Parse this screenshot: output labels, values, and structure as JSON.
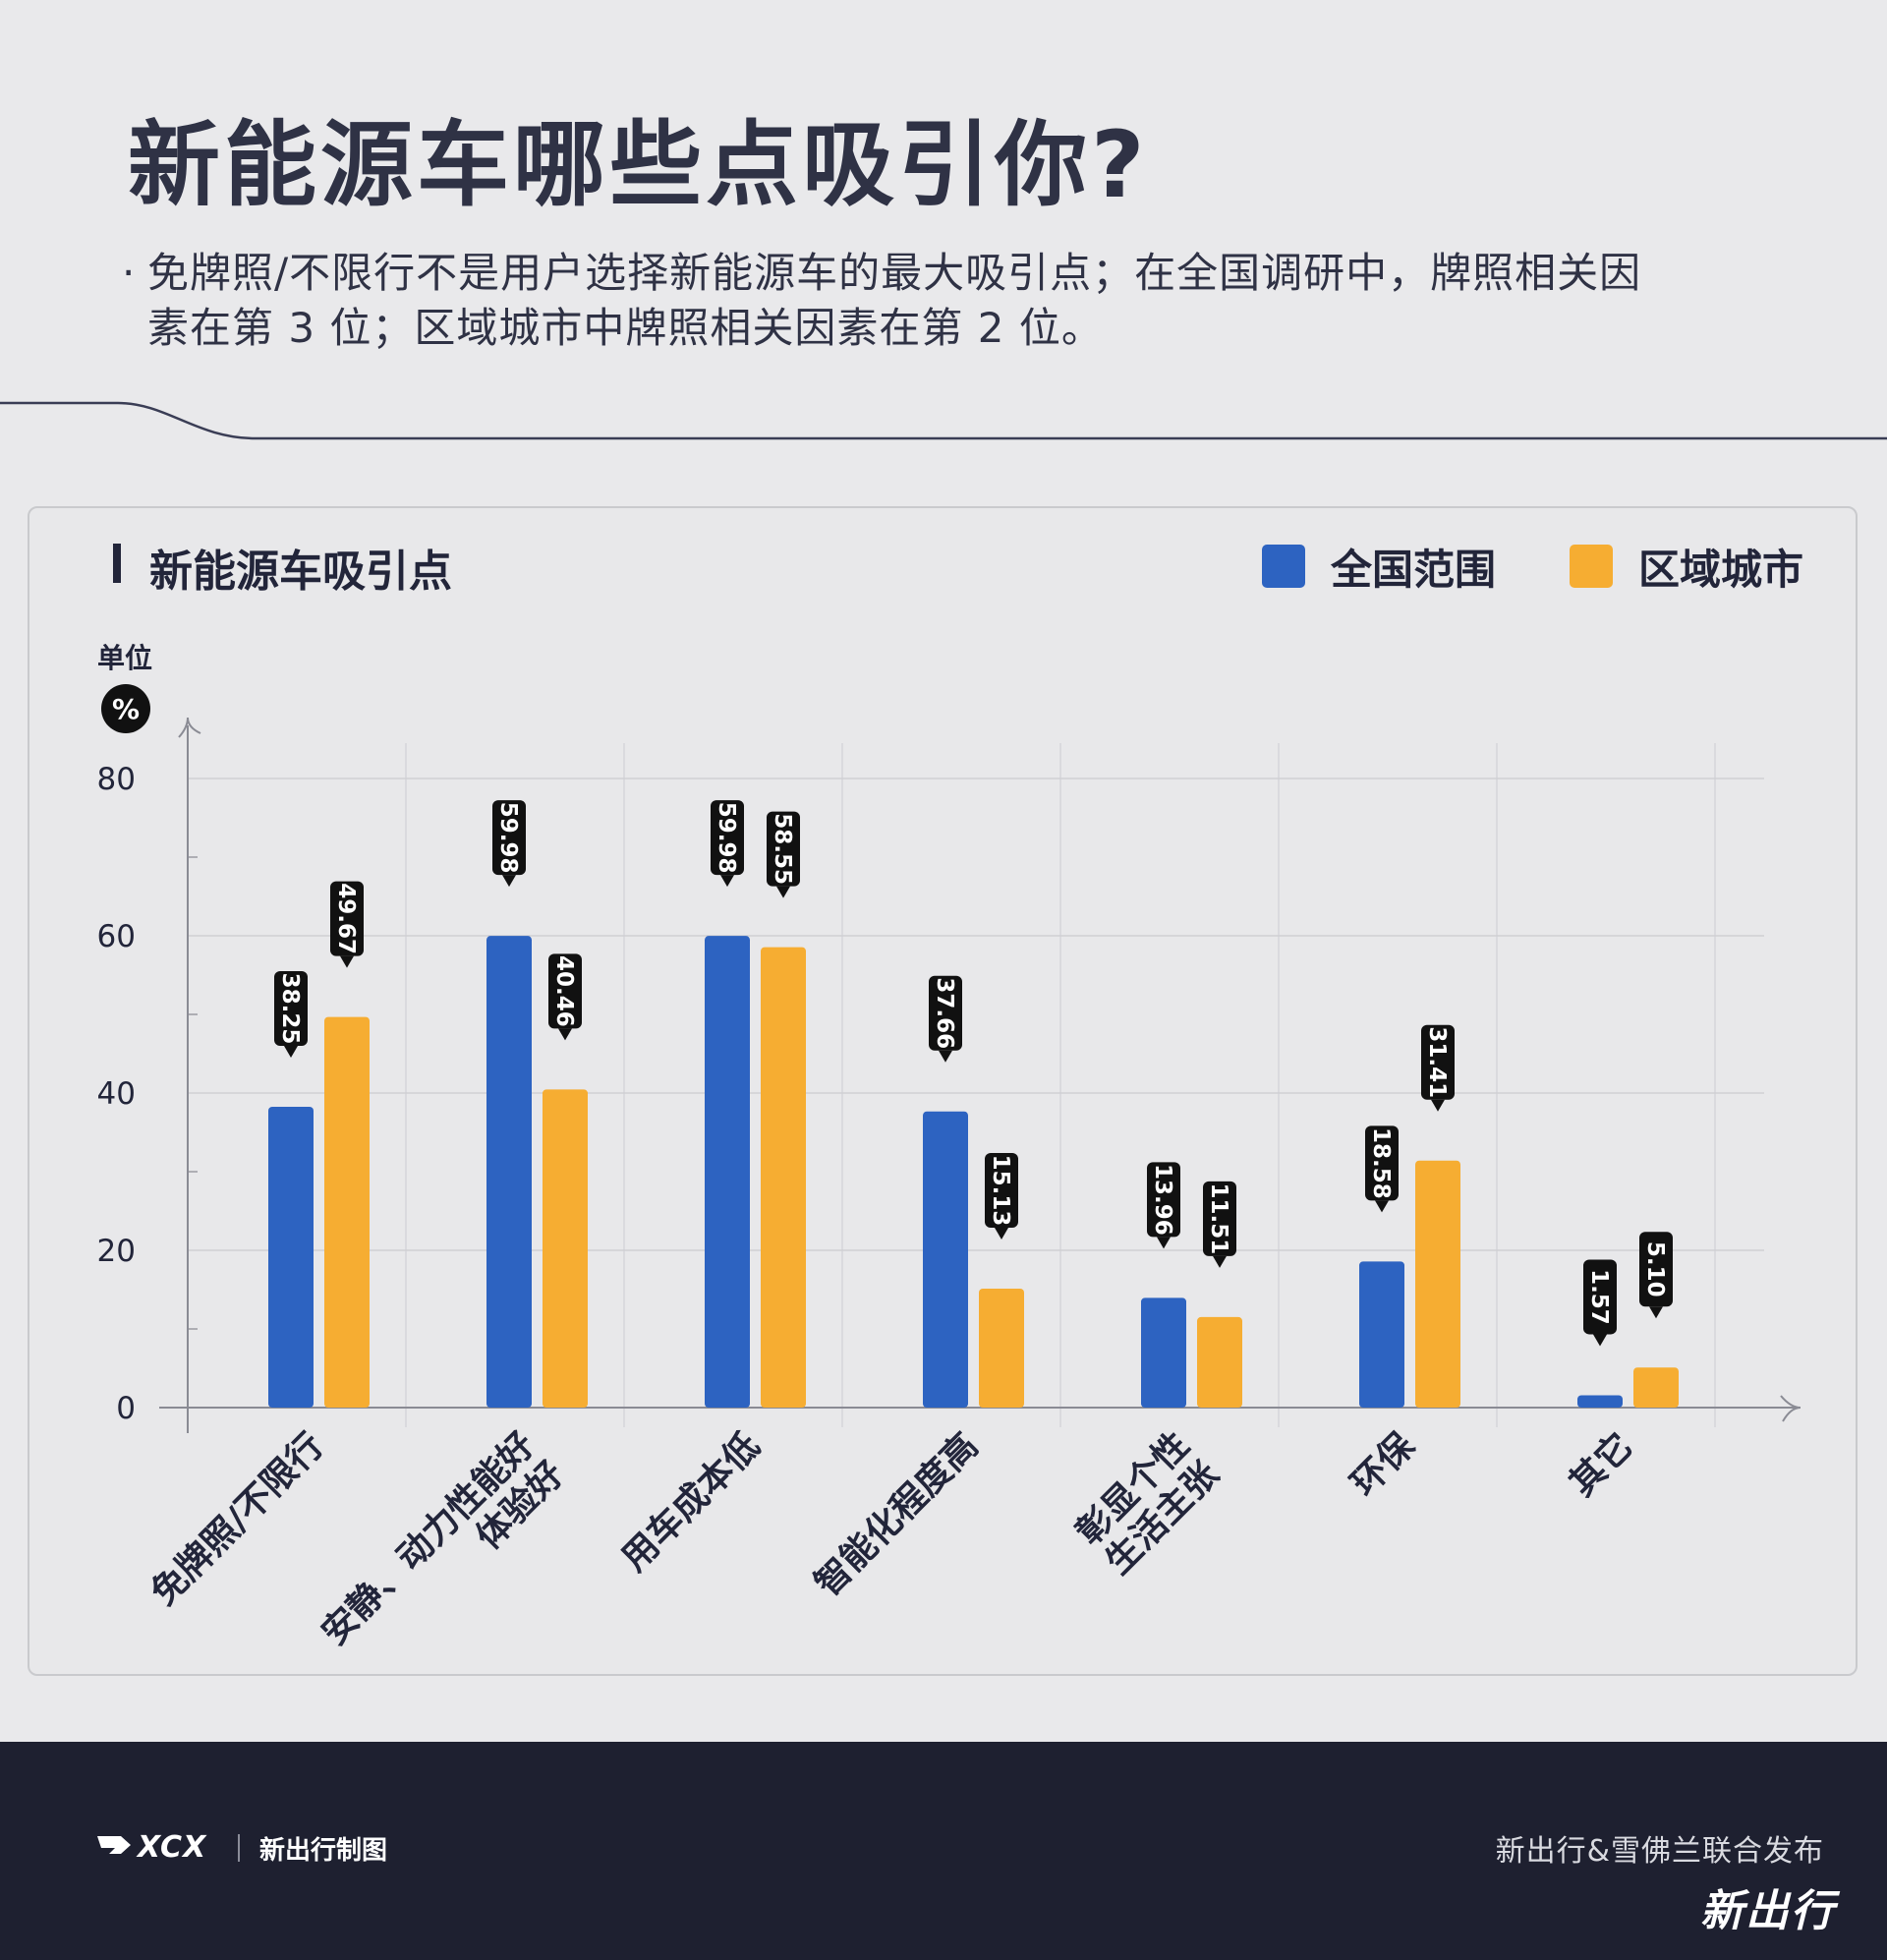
{
  "header": {
    "title": "新能源车哪些点吸引你?",
    "bullet_line1": "免牌照/不限行不是用户选择新能源车的最大吸引点；在全国调研中，牌照相关因",
    "bullet_line2": "素在第 3 位；区域城市中牌照相关因素在第 2 位。"
  },
  "card": {
    "title": "新能源车吸引点",
    "unit_label": "单位",
    "unit_symbol": "%"
  },
  "legend": [
    {
      "name": "全国范围",
      "color": "#2d63c1"
    },
    {
      "name": "区域城市",
      "color": "#f6ad32"
    }
  ],
  "chart_data": {
    "type": "bar",
    "title": "新能源车吸引点",
    "ylabel": "单位 %",
    "ylim": [
      0,
      80
    ],
    "yticks": [
      0,
      20,
      40,
      60,
      80
    ],
    "grid": true,
    "legend_position": "top-right",
    "categories": [
      "免牌照/不限行",
      "安静、动力性能好\n体验好",
      "用车成本低",
      "智能化程度高",
      "彰显个性\n生活主张",
      "环保",
      "其它"
    ],
    "series": [
      {
        "name": "全国范围",
        "color": "#2d63c1",
        "values": [
          38.25,
          59.98,
          59.98,
          37.66,
          13.96,
          18.58,
          1.57
        ],
        "labels": [
          "38.25",
          "59.98",
          "59.98",
          "37.66",
          "13.96",
          "18.58",
          "1.57"
        ]
      },
      {
        "name": "区域城市",
        "color": "#f6ad32",
        "values": [
          49.67,
          40.46,
          58.55,
          15.13,
          11.51,
          31.41,
          5.1
        ],
        "labels": [
          "49.67",
          "40.46",
          "58.55",
          "15.13",
          "11.51",
          "31.41",
          "5.10"
        ]
      }
    ]
  },
  "footer": {
    "logo": "XCX",
    "credit": "新出行制图",
    "publisher": "新出行&雪佛兰联合发布",
    "brand": "新出行"
  }
}
